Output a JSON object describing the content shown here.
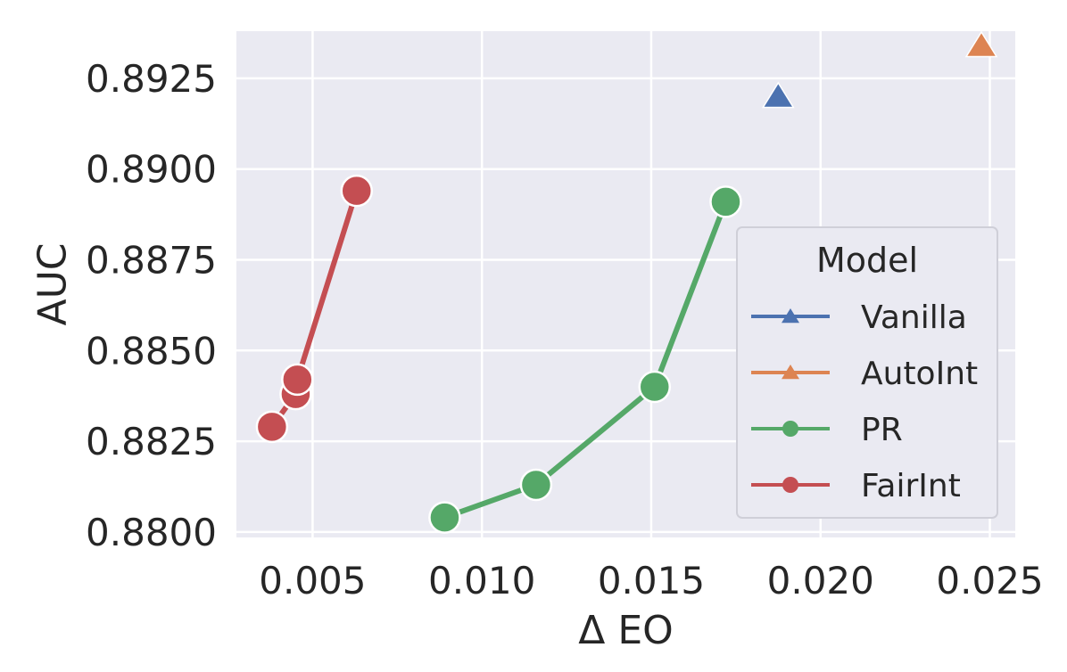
{
  "chart_data": {
    "type": "scatter",
    "title": "",
    "xlabel": "Δ EO",
    "ylabel": "AUC",
    "xlim": [
      0.00275,
      0.02575
    ],
    "ylim": [
      0.87985,
      0.8938
    ],
    "xticks": [
      0.005,
      0.01,
      0.015,
      0.02,
      0.025
    ],
    "xtick_labels": [
      "0.005",
      "0.010",
      "0.015",
      "0.020",
      "0.025"
    ],
    "yticks": [
      0.88,
      0.8825,
      0.885,
      0.8875,
      0.89,
      0.8925
    ],
    "ytick_labels": [
      "0.8800",
      "0.8825",
      "0.8850",
      "0.8875",
      "0.8900",
      "0.8925"
    ],
    "grid": true,
    "legend": {
      "title": "Model",
      "placement": "right"
    },
    "series": [
      {
        "name": "Vanilla",
        "marker": "triangle",
        "line": false,
        "color": "#4C72B0",
        "x": [
          0.01875
        ],
        "y": [
          0.892
        ]
      },
      {
        "name": "AutoInt",
        "marker": "triangle",
        "line": false,
        "color": "#DD8452",
        "x": [
          0.02475
        ],
        "y": [
          0.8934
        ]
      },
      {
        "name": "PR",
        "marker": "circle",
        "line": true,
        "color": "#55A868",
        "x": [
          0.0089,
          0.0116,
          0.0151,
          0.0172
        ],
        "y": [
          0.8804,
          0.8813,
          0.884,
          0.8891
        ]
      },
      {
        "name": "FairInt",
        "marker": "circle",
        "line": true,
        "color": "#C44E52",
        "x": [
          0.0038,
          0.0045,
          0.00455,
          0.0063
        ],
        "y": [
          0.8829,
          0.8838,
          0.8842,
          0.8894
        ]
      }
    ]
  }
}
